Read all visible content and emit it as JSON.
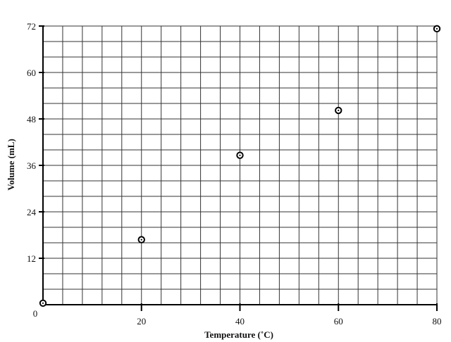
{
  "chart_data": {
    "type": "scatter",
    "title": "",
    "xlabel": "Temperature (˚C)",
    "ylabel": "Volume (mL)",
    "xlim": [
      0,
      80
    ],
    "ylim": [
      0,
      72
    ],
    "x_ticks": [
      0,
      20,
      40,
      60,
      80
    ],
    "y_ticks": [
      0,
      12,
      24,
      36,
      48,
      60,
      72
    ],
    "grid": true,
    "grid_minor": {
      "x_step": 4,
      "y_step": 4
    },
    "series": [
      {
        "points": [
          {
            "x": 0,
            "y": 0.4
          },
          {
            "x": 20,
            "y": 16.8
          },
          {
            "x": 40,
            "y": 38.6
          },
          {
            "x": 60,
            "y": 50.2
          },
          {
            "x": 80,
            "y": 71.3
          }
        ],
        "marker": "circle-dot",
        "color": "#000000"
      }
    ],
    "colors": {
      "grid": "#333333",
      "axis": "#000000",
      "marker": "#000000"
    }
  }
}
